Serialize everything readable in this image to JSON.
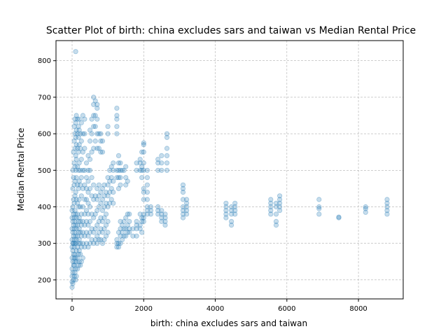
{
  "chart_data": {
    "type": "scatter",
    "title": "Scatter Plot of birth: china excludes sars and taiwan vs Median Rental Price",
    "xlabel": "birth: china excludes sars and taiwan",
    "ylabel": "Median Rental Price",
    "xlim": [
      -450,
      9250
    ],
    "ylim": [
      148,
      855
    ],
    "xticks": [
      0,
      2000,
      4000,
      6000,
      8000
    ],
    "yticks": [
      200,
      300,
      400,
      500,
      600,
      700,
      800
    ],
    "grid": true,
    "point_color": "#1f77b4",
    "point_alpha": 0.25,
    "points": [
      [
        0,
        180
      ],
      [
        0,
        195
      ],
      [
        0,
        210
      ],
      [
        0,
        230
      ],
      [
        0,
        260
      ],
      [
        0,
        290
      ],
      [
        0,
        310
      ],
      [
        0,
        340
      ],
      [
        0,
        370
      ],
      [
        0,
        390
      ],
      [
        20,
        190
      ],
      [
        20,
        220
      ],
      [
        20,
        250
      ],
      [
        20,
        280
      ],
      [
        20,
        300
      ],
      [
        20,
        330
      ],
      [
        20,
        360
      ],
      [
        20,
        400
      ],
      [
        20,
        450
      ],
      [
        20,
        500
      ],
      [
        40,
        200
      ],
      [
        40,
        240
      ],
      [
        40,
        270
      ],
      [
        40,
        300
      ],
      [
        40,
        320
      ],
      [
        40,
        350
      ],
      [
        40,
        380
      ],
      [
        40,
        420
      ],
      [
        40,
        480
      ],
      [
        40,
        550
      ],
      [
        60,
        210
      ],
      [
        60,
        240
      ],
      [
        60,
        260
      ],
      [
        60,
        290
      ],
      [
        60,
        310
      ],
      [
        60,
        340
      ],
      [
        60,
        370
      ],
      [
        60,
        410
      ],
      [
        60,
        460
      ],
      [
        60,
        520
      ],
      [
        60,
        580
      ],
      [
        60,
        620
      ],
      [
        80,
        220
      ],
      [
        80,
        250
      ],
      [
        80,
        270
      ],
      [
        80,
        300
      ],
      [
        80,
        330
      ],
      [
        80,
        360
      ],
      [
        80,
        390
      ],
      [
        80,
        430
      ],
      [
        80,
        470
      ],
      [
        80,
        510
      ],
      [
        80,
        560
      ],
      [
        80,
        600
      ],
      [
        80,
        640
      ],
      [
        100,
        200
      ],
      [
        100,
        230
      ],
      [
        100,
        260
      ],
      [
        100,
        300
      ],
      [
        100,
        320
      ],
      [
        100,
        350
      ],
      [
        100,
        380
      ],
      [
        100,
        440
      ],
      [
        100,
        500
      ],
      [
        100,
        540
      ],
      [
        100,
        590
      ],
      [
        100,
        630
      ],
      [
        100,
        825
      ],
      [
        120,
        210
      ],
      [
        120,
        250
      ],
      [
        120,
        280
      ],
      [
        120,
        310
      ],
      [
        120,
        340
      ],
      [
        120,
        370
      ],
      [
        120,
        420
      ],
      [
        120,
        480
      ],
      [
        120,
        530
      ],
      [
        120,
        570
      ],
      [
        120,
        610
      ],
      [
        120,
        650
      ],
      [
        150,
        230
      ],
      [
        150,
        260
      ],
      [
        150,
        290
      ],
      [
        150,
        320
      ],
      [
        150,
        350
      ],
      [
        150,
        380
      ],
      [
        150,
        410
      ],
      [
        150,
        460
      ],
      [
        150,
        510
      ],
      [
        150,
        560
      ],
      [
        150,
        600
      ],
      [
        150,
        640
      ],
      [
        180,
        240
      ],
      [
        180,
        270
      ],
      [
        180,
        300
      ],
      [
        180,
        330
      ],
      [
        180,
        360
      ],
      [
        180,
        400
      ],
      [
        180,
        450
      ],
      [
        180,
        500
      ],
      [
        180,
        550
      ],
      [
        180,
        590
      ],
      [
        180,
        620
      ],
      [
        200,
        250
      ],
      [
        200,
        280
      ],
      [
        200,
        310
      ],
      [
        200,
        340
      ],
      [
        200,
        370
      ],
      [
        200,
        420
      ],
      [
        200,
        470
      ],
      [
        200,
        520
      ],
      [
        200,
        570
      ],
      [
        200,
        610
      ],
      [
        200,
        640
      ],
      [
        230,
        240
      ],
      [
        230,
        270
      ],
      [
        230,
        300
      ],
      [
        230,
        330
      ],
      [
        230,
        360
      ],
      [
        230,
        400
      ],
      [
        230,
        460
      ],
      [
        230,
        500
      ],
      [
        230,
        560
      ],
      [
        230,
        600
      ],
      [
        260,
        250
      ],
      [
        260,
        290
      ],
      [
        260,
        320
      ],
      [
        260,
        350
      ],
      [
        260,
        380
      ],
      [
        260,
        430
      ],
      [
        260,
        480
      ],
      [
        260,
        530
      ],
      [
        260,
        580
      ],
      [
        260,
        630
      ],
      [
        300,
        260
      ],
      [
        300,
        300
      ],
      [
        300,
        330
      ],
      [
        300,
        360
      ],
      [
        300,
        400
      ],
      [
        300,
        450
      ],
      [
        300,
        500
      ],
      [
        300,
        550
      ],
      [
        300,
        600
      ],
      [
        300,
        650
      ],
      [
        350,
        290
      ],
      [
        350,
        320
      ],
      [
        350,
        350
      ],
      [
        350,
        380
      ],
      [
        350,
        420
      ],
      [
        350,
        460
      ],
      [
        350,
        500
      ],
      [
        350,
        560
      ],
      [
        350,
        600
      ],
      [
        350,
        640
      ],
      [
        400,
        300
      ],
      [
        400,
        330
      ],
      [
        400,
        360
      ],
      [
        400,
        390
      ],
      [
        400,
        420
      ],
      [
        400,
        450
      ],
      [
        400,
        480
      ],
      [
        400,
        520
      ],
      [
        450,
        290
      ],
      [
        450,
        320
      ],
      [
        450,
        350
      ],
      [
        450,
        380
      ],
      [
        450,
        410
      ],
      [
        450,
        440
      ],
      [
        450,
        470
      ],
      [
        450,
        500
      ],
      [
        450,
        540
      ],
      [
        500,
        300
      ],
      [
        500,
        330
      ],
      [
        500,
        360
      ],
      [
        500,
        400
      ],
      [
        500,
        450
      ],
      [
        500,
        500
      ],
      [
        500,
        530
      ],
      [
        500,
        580
      ],
      [
        500,
        610
      ],
      [
        550,
        310
      ],
      [
        550,
        340
      ],
      [
        550,
        380
      ],
      [
        550,
        430
      ],
      [
        550,
        480
      ],
      [
        550,
        550
      ],
      [
        550,
        600
      ],
      [
        550,
        640
      ],
      [
        600,
        300
      ],
      [
        600,
        330
      ],
      [
        600,
        370
      ],
      [
        600,
        420
      ],
      [
        600,
        460
      ],
      [
        600,
        560
      ],
      [
        600,
        620
      ],
      [
        600,
        650
      ],
      [
        600,
        680
      ],
      [
        600,
        700
      ],
      [
        650,
        310
      ],
      [
        650,
        340
      ],
      [
        650,
        380
      ],
      [
        650,
        430
      ],
      [
        650,
        580
      ],
      [
        650,
        620
      ],
      [
        650,
        650
      ],
      [
        650,
        690
      ],
      [
        700,
        300
      ],
      [
        700,
        320
      ],
      [
        700,
        350
      ],
      [
        700,
        390
      ],
      [
        700,
        420
      ],
      [
        700,
        450
      ],
      [
        700,
        560
      ],
      [
        700,
        600
      ],
      [
        700,
        640
      ],
      [
        700,
        670
      ],
      [
        700,
        680
      ],
      [
        750,
        310
      ],
      [
        750,
        330
      ],
      [
        750,
        360
      ],
      [
        750,
        400
      ],
      [
        750,
        430
      ],
      [
        750,
        460
      ],
      [
        750,
        560
      ],
      [
        750,
        600
      ],
      [
        800,
        310
      ],
      [
        800,
        340
      ],
      [
        800,
        370
      ],
      [
        800,
        410
      ],
      [
        800,
        440
      ],
      [
        800,
        550
      ],
      [
        800,
        580
      ],
      [
        800,
        600
      ],
      [
        850,
        300
      ],
      [
        850,
        330
      ],
      [
        850,
        360
      ],
      [
        850,
        390
      ],
      [
        850,
        420
      ],
      [
        850,
        450
      ],
      [
        850,
        550
      ],
      [
        850,
        580
      ],
      [
        900,
        310
      ],
      [
        900,
        340
      ],
      [
        900,
        370
      ],
      [
        900,
        400
      ],
      [
        900,
        430
      ],
      [
        900,
        460
      ],
      [
        950,
        320
      ],
      [
        950,
        350
      ],
      [
        950,
        380
      ],
      [
        950,
        410
      ],
      [
        950,
        440
      ],
      [
        1000,
        330
      ],
      [
        1000,
        360
      ],
      [
        1000,
        400
      ],
      [
        1000,
        430
      ],
      [
        1000,
        460
      ],
      [
        1000,
        480
      ],
      [
        1000,
        600
      ],
      [
        1000,
        620
      ],
      [
        1050,
        410
      ],
      [
        1050,
        440
      ],
      [
        1050,
        470
      ],
      [
        1050,
        500
      ],
      [
        1100,
        420
      ],
      [
        1100,
        450
      ],
      [
        1100,
        480
      ],
      [
        1100,
        510
      ],
      [
        1150,
        410
      ],
      [
        1150,
        440
      ],
      [
        1150,
        470
      ],
      [
        1150,
        500
      ],
      [
        1150,
        520
      ],
      [
        1250,
        290
      ],
      [
        1250,
        300
      ],
      [
        1250,
        310
      ],
      [
        1250,
        480
      ],
      [
        1250,
        500
      ],
      [
        1250,
        600
      ],
      [
        1250,
        620
      ],
      [
        1250,
        640
      ],
      [
        1250,
        650
      ],
      [
        1250,
        670
      ],
      [
        1300,
        290
      ],
      [
        1300,
        300
      ],
      [
        1300,
        330
      ],
      [
        1300,
        450
      ],
      [
        1300,
        480
      ],
      [
        1300,
        500
      ],
      [
        1300,
        520
      ],
      [
        1300,
        540
      ],
      [
        1350,
        300
      ],
      [
        1350,
        320
      ],
      [
        1350,
        340
      ],
      [
        1350,
        360
      ],
      [
        1350,
        460
      ],
      [
        1350,
        480
      ],
      [
        1350,
        500
      ],
      [
        1350,
        520
      ],
      [
        1400,
        310
      ],
      [
        1400,
        330
      ],
      [
        1400,
        350
      ],
      [
        1400,
        500
      ],
      [
        1450,
        320
      ],
      [
        1450,
        340
      ],
      [
        1450,
        360
      ],
      [
        1450,
        500
      ],
      [
        1500,
        320
      ],
      [
        1500,
        340
      ],
      [
        1500,
        370
      ],
      [
        1500,
        460
      ],
      [
        1500,
        480
      ],
      [
        1500,
        510
      ],
      [
        1550,
        330
      ],
      [
        1550,
        350
      ],
      [
        1550,
        380
      ],
      [
        1550,
        470
      ],
      [
        1600,
        330
      ],
      [
        1600,
        340
      ],
      [
        1600,
        360
      ],
      [
        1600,
        380
      ],
      [
        1700,
        320
      ],
      [
        1700,
        340
      ],
      [
        1800,
        320
      ],
      [
        1800,
        340
      ],
      [
        1800,
        350
      ],
      [
        1800,
        360
      ],
      [
        1800,
        500
      ],
      [
        1800,
        520
      ],
      [
        1900,
        340
      ],
      [
        1900,
        350
      ],
      [
        1900,
        380
      ],
      [
        1900,
        500
      ],
      [
        1900,
        520
      ],
      [
        1900,
        530
      ],
      [
        1950,
        330
      ],
      [
        1950,
        360
      ],
      [
        1950,
        370
      ],
      [
        1950,
        480
      ],
      [
        1950,
        500
      ],
      [
        1950,
        510
      ],
      [
        1950,
        550
      ],
      [
        2000,
        360
      ],
      [
        2000,
        370
      ],
      [
        2000,
        380
      ],
      [
        2000,
        420
      ],
      [
        2000,
        440
      ],
      [
        2000,
        450
      ],
      [
        2000,
        500
      ],
      [
        2000,
        520
      ],
      [
        2000,
        550
      ],
      [
        2000,
        570
      ],
      [
        2000,
        575
      ],
      [
        2100,
        380
      ],
      [
        2100,
        390
      ],
      [
        2100,
        400
      ],
      [
        2100,
        420
      ],
      [
        2100,
        440
      ],
      [
        2100,
        460
      ],
      [
        2100,
        480
      ],
      [
        2100,
        500
      ],
      [
        2200,
        380
      ],
      [
        2200,
        390
      ],
      [
        2200,
        400
      ],
      [
        2400,
        380
      ],
      [
        2400,
        390
      ],
      [
        2400,
        400
      ],
      [
        2400,
        500
      ],
      [
        2400,
        520
      ],
      [
        2400,
        530
      ],
      [
        2500,
        360
      ],
      [
        2500,
        370
      ],
      [
        2500,
        380
      ],
      [
        2500,
        390
      ],
      [
        2500,
        500
      ],
      [
        2500,
        520
      ],
      [
        2500,
        540
      ],
      [
        2600,
        350
      ],
      [
        2600,
        360
      ],
      [
        2600,
        370
      ],
      [
        2600,
        380
      ],
      [
        2650,
        500
      ],
      [
        2650,
        520
      ],
      [
        2650,
        540
      ],
      [
        2650,
        560
      ],
      [
        2650,
        590
      ],
      [
        2650,
        600
      ],
      [
        3100,
        370
      ],
      [
        3100,
        380
      ],
      [
        3100,
        390
      ],
      [
        3100,
        400
      ],
      [
        3100,
        420
      ],
      [
        3100,
        440
      ],
      [
        3100,
        450
      ],
      [
        3100,
        460
      ],
      [
        3200,
        380
      ],
      [
        3200,
        390
      ],
      [
        3200,
        400
      ],
      [
        3200,
        410
      ],
      [
        3200,
        420
      ],
      [
        4300,
        370
      ],
      [
        4300,
        380
      ],
      [
        4300,
        390
      ],
      [
        4300,
        400
      ],
      [
        4300,
        410
      ],
      [
        4450,
        350
      ],
      [
        4450,
        360
      ],
      [
        4450,
        380
      ],
      [
        4450,
        390
      ],
      [
        4450,
        400
      ],
      [
        4550,
        380
      ],
      [
        4550,
        390
      ],
      [
        4550,
        400
      ],
      [
        4550,
        410
      ],
      [
        5550,
        380
      ],
      [
        5550,
        390
      ],
      [
        5550,
        400
      ],
      [
        5550,
        410
      ],
      [
        5550,
        420
      ],
      [
        5700,
        350
      ],
      [
        5700,
        360
      ],
      [
        5700,
        380
      ],
      [
        5700,
        400
      ],
      [
        5700,
        410
      ],
      [
        5800,
        390
      ],
      [
        5800,
        400
      ],
      [
        5800,
        410
      ],
      [
        5800,
        420
      ],
      [
        5800,
        430
      ],
      [
        6900,
        380
      ],
      [
        6900,
        395
      ],
      [
        6900,
        400
      ],
      [
        6900,
        420
      ],
      [
        7450,
        370
      ],
      [
        7450,
        372
      ],
      [
        8200,
        385
      ],
      [
        8200,
        395
      ],
      [
        8200,
        400
      ],
      [
        8800,
        380
      ],
      [
        8800,
        390
      ],
      [
        8800,
        400
      ],
      [
        8800,
        410
      ],
      [
        8800,
        420
      ]
    ]
  }
}
